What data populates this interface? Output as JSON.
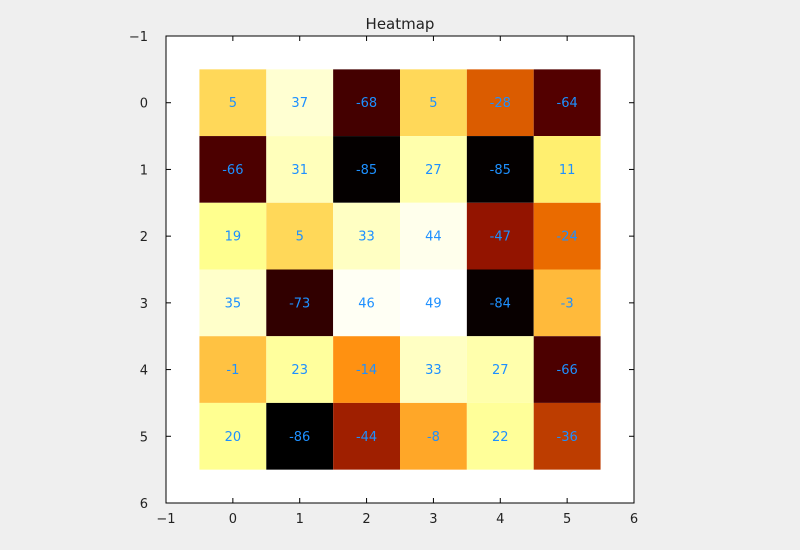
{
  "chart_data": {
    "type": "heatmap",
    "title": "Heatmap",
    "xlabel": "",
    "ylabel": "",
    "colormap": "afmhot",
    "x_tick_labels": [
      "−1",
      "0",
      "1",
      "2",
      "3",
      "4",
      "5",
      "6"
    ],
    "y_tick_labels": [
      "−1",
      "0",
      "1",
      "2",
      "3",
      "4",
      "5",
      "6"
    ],
    "x_ticks": [
      -1,
      0,
      1,
      2,
      3,
      4,
      5,
      6
    ],
    "y_ticks": [
      -1,
      0,
      1,
      2,
      3,
      4,
      5,
      6
    ],
    "xlim": [
      -1,
      6
    ],
    "ylim": [
      6,
      -1
    ],
    "vmin": -86,
    "vmax": 49,
    "annotation_color": "#1e90ff",
    "grid": false,
    "values": [
      [
        5,
        37,
        -68,
        5,
        -28,
        -64
      ],
      [
        -66,
        31,
        -85,
        27,
        -85,
        11
      ],
      [
        19,
        5,
        33,
        44,
        -47,
        -24
      ],
      [
        35,
        -73,
        46,
        49,
        -84,
        -3
      ],
      [
        -1,
        23,
        -14,
        33,
        27,
        -66
      ],
      [
        20,
        -86,
        -44,
        -8,
        22,
        -36
      ]
    ]
  }
}
